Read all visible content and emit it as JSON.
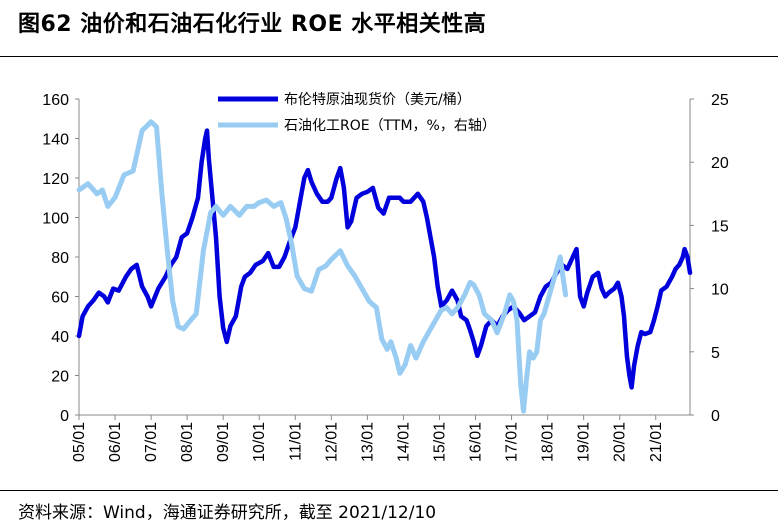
{
  "title": "图62 油价和石油石化行业 ROE 水平相关性高",
  "source": "资料来源：Wind，海通证券研究所，截至 2021/12/10",
  "chart_data": {
    "type": "line",
    "x_tick_labels": [
      "05/01",
      "06/01",
      "07/01",
      "08/01",
      "09/01",
      "10/01",
      "11/01",
      "12/01",
      "13/01",
      "14/01",
      "15/01",
      "16/01",
      "17/01",
      "18/01",
      "19/01",
      "20/01",
      "21/01"
    ],
    "x_range": [
      2005.0,
      2021.95
    ],
    "y_left": {
      "min": 0,
      "max": 160,
      "ticks": [
        0,
        20,
        40,
        60,
        80,
        100,
        120,
        140,
        160
      ]
    },
    "y_right": {
      "min": 0,
      "max": 25,
      "ticks": [
        0,
        5,
        10,
        15,
        20,
        25
      ]
    },
    "legend_position": "top-center",
    "series": [
      {
        "name": "布伦特原油现货价（美元/桶）",
        "axis": "left",
        "color": "#0000dd",
        "style": "thick",
        "points": [
          [
            2005.0,
            40
          ],
          [
            2005.1,
            50
          ],
          [
            2005.25,
            55
          ],
          [
            2005.4,
            58
          ],
          [
            2005.55,
            62
          ],
          [
            2005.7,
            60
          ],
          [
            2005.8,
            57
          ],
          [
            2005.95,
            64
          ],
          [
            2006.1,
            63
          ],
          [
            2006.3,
            70
          ],
          [
            2006.45,
            74
          ],
          [
            2006.6,
            76
          ],
          [
            2006.75,
            65
          ],
          [
            2006.9,
            60
          ],
          [
            2007.0,
            55
          ],
          [
            2007.2,
            64
          ],
          [
            2007.4,
            70
          ],
          [
            2007.55,
            76
          ],
          [
            2007.7,
            80
          ],
          [
            2007.85,
            90
          ],
          [
            2008.0,
            92
          ],
          [
            2008.15,
            100
          ],
          [
            2008.3,
            110
          ],
          [
            2008.4,
            128
          ],
          [
            2008.5,
            140
          ],
          [
            2008.55,
            144
          ],
          [
            2008.6,
            130
          ],
          [
            2008.7,
            110
          ],
          [
            2008.8,
            90
          ],
          [
            2008.9,
            60
          ],
          [
            2009.0,
            44
          ],
          [
            2009.1,
            37
          ],
          [
            2009.2,
            45
          ],
          [
            2009.35,
            50
          ],
          [
            2009.5,
            65
          ],
          [
            2009.6,
            70
          ],
          [
            2009.75,
            72
          ],
          [
            2009.9,
            76
          ],
          [
            2010.1,
            78
          ],
          [
            2010.25,
            82
          ],
          [
            2010.4,
            75
          ],
          [
            2010.55,
            75
          ],
          [
            2010.7,
            80
          ],
          [
            2010.85,
            88
          ],
          [
            2011.0,
            95
          ],
          [
            2011.1,
            105
          ],
          [
            2011.25,
            120
          ],
          [
            2011.35,
            124
          ],
          [
            2011.45,
            118
          ],
          [
            2011.6,
            112
          ],
          [
            2011.75,
            108
          ],
          [
            2011.9,
            108
          ],
          [
            2012.0,
            110
          ],
          [
            2012.15,
            120
          ],
          [
            2012.25,
            125
          ],
          [
            2012.35,
            115
          ],
          [
            2012.45,
            95
          ],
          [
            2012.55,
            98
          ],
          [
            2012.7,
            110
          ],
          [
            2012.85,
            112
          ],
          [
            2013.0,
            113
          ],
          [
            2013.15,
            115
          ],
          [
            2013.3,
            105
          ],
          [
            2013.45,
            102
          ],
          [
            2013.6,
            110
          ],
          [
            2013.75,
            110
          ],
          [
            2013.9,
            110
          ],
          [
            2014.0,
            108
          ],
          [
            2014.2,
            108
          ],
          [
            2014.4,
            112
          ],
          [
            2014.55,
            108
          ],
          [
            2014.65,
            100
          ],
          [
            2014.75,
            90
          ],
          [
            2014.85,
            80
          ],
          [
            2014.95,
            65
          ],
          [
            2015.05,
            55
          ],
          [
            2015.2,
            58
          ],
          [
            2015.35,
            63
          ],
          [
            2015.5,
            58
          ],
          [
            2015.6,
            50
          ],
          [
            2015.75,
            48
          ],
          [
            2015.85,
            43
          ],
          [
            2015.95,
            37
          ],
          [
            2016.05,
            30
          ],
          [
            2016.15,
            35
          ],
          [
            2016.3,
            45
          ],
          [
            2016.45,
            48
          ],
          [
            2016.6,
            45
          ],
          [
            2016.75,
            50
          ],
          [
            2016.9,
            53
          ],
          [
            2017.05,
            55
          ],
          [
            2017.2,
            52
          ],
          [
            2017.35,
            48
          ],
          [
            2017.5,
            50
          ],
          [
            2017.65,
            52
          ],
          [
            2017.8,
            60
          ],
          [
            2017.95,
            65
          ],
          [
            2018.1,
            67
          ],
          [
            2018.25,
            72
          ],
          [
            2018.4,
            76
          ],
          [
            2018.55,
            74
          ],
          [
            2018.7,
            80
          ],
          [
            2018.8,
            84
          ],
          [
            2018.9,
            60
          ],
          [
            2019.0,
            55
          ],
          [
            2019.1,
            62
          ],
          [
            2019.25,
            70
          ],
          [
            2019.4,
            72
          ],
          [
            2019.5,
            64
          ],
          [
            2019.6,
            60
          ],
          [
            2019.7,
            62
          ],
          [
            2019.85,
            64
          ],
          [
            2019.95,
            67
          ],
          [
            2020.05,
            60
          ],
          [
            2020.12,
            50
          ],
          [
            2020.2,
            30
          ],
          [
            2020.27,
            20
          ],
          [
            2020.33,
            14
          ],
          [
            2020.4,
            25
          ],
          [
            2020.5,
            35
          ],
          [
            2020.6,
            42
          ],
          [
            2020.7,
            41
          ],
          [
            2020.85,
            42
          ],
          [
            2020.95,
            48
          ],
          [
            2021.05,
            55
          ],
          [
            2021.15,
            63
          ],
          [
            2021.3,
            65
          ],
          [
            2021.45,
            70
          ],
          [
            2021.55,
            74
          ],
          [
            2021.65,
            76
          ],
          [
            2021.75,
            80
          ],
          [
            2021.8,
            84
          ],
          [
            2021.88,
            80
          ],
          [
            2021.95,
            72
          ]
        ]
      },
      {
        "name": "石油化工ROE（TTM，%，右轴）",
        "axis": "right",
        "color": "#99ccf2",
        "style": "thick",
        "points": [
          [
            2005.0,
            17.8
          ],
          [
            2005.25,
            18.3
          ],
          [
            2005.5,
            17.5
          ],
          [
            2005.65,
            17.8
          ],
          [
            2005.8,
            16.5
          ],
          [
            2006.0,
            17.2
          ],
          [
            2006.25,
            19.0
          ],
          [
            2006.5,
            19.3
          ],
          [
            2006.75,
            22.5
          ],
          [
            2007.0,
            23.2
          ],
          [
            2007.15,
            22.8
          ],
          [
            2007.3,
            17.5
          ],
          [
            2007.45,
            13.0
          ],
          [
            2007.6,
            9.0
          ],
          [
            2007.75,
            7.0
          ],
          [
            2007.9,
            6.8
          ],
          [
            2008.1,
            7.5
          ],
          [
            2008.25,
            8.0
          ],
          [
            2008.45,
            13.0
          ],
          [
            2008.65,
            16.0
          ],
          [
            2008.8,
            16.5
          ],
          [
            2009.0,
            15.8
          ],
          [
            2009.2,
            16.5
          ],
          [
            2009.45,
            15.8
          ],
          [
            2009.65,
            16.5
          ],
          [
            2009.85,
            16.5
          ],
          [
            2010.0,
            16.8
          ],
          [
            2010.2,
            17.0
          ],
          [
            2010.4,
            16.5
          ],
          [
            2010.6,
            16.8
          ],
          [
            2010.75,
            15.5
          ],
          [
            2010.9,
            13.5
          ],
          [
            2011.05,
            11.0
          ],
          [
            2011.25,
            10.0
          ],
          [
            2011.45,
            9.8
          ],
          [
            2011.65,
            11.5
          ],
          [
            2011.85,
            11.8
          ],
          [
            2012.0,
            12.3
          ],
          [
            2012.25,
            13.0
          ],
          [
            2012.45,
            11.8
          ],
          [
            2012.65,
            11.0
          ],
          [
            2012.85,
            10.0
          ],
          [
            2013.05,
            9.0
          ],
          [
            2013.25,
            8.5
          ],
          [
            2013.4,
            6.0
          ],
          [
            2013.55,
            5.2
          ],
          [
            2013.65,
            5.8
          ],
          [
            2013.8,
            4.5
          ],
          [
            2013.9,
            3.3
          ],
          [
            2014.05,
            4.0
          ],
          [
            2014.2,
            5.5
          ],
          [
            2014.35,
            4.5
          ],
          [
            2014.55,
            5.8
          ],
          [
            2014.75,
            6.8
          ],
          [
            2014.95,
            7.8
          ],
          [
            2015.05,
            8.3
          ],
          [
            2015.2,
            8.5
          ],
          [
            2015.35,
            8.0
          ],
          [
            2015.5,
            8.5
          ],
          [
            2015.7,
            9.5
          ],
          [
            2015.85,
            10.5
          ],
          [
            2015.95,
            10.3
          ],
          [
            2016.1,
            9.5
          ],
          [
            2016.25,
            8.0
          ],
          [
            2016.45,
            7.5
          ],
          [
            2016.6,
            6.5
          ],
          [
            2016.8,
            8.0
          ],
          [
            2016.95,
            9.5
          ],
          [
            2017.05,
            9.0
          ],
          [
            2017.15,
            7.5
          ],
          [
            2017.25,
            2.5
          ],
          [
            2017.33,
            0.3
          ],
          [
            2017.42,
            3.0
          ],
          [
            2017.5,
            5.0
          ],
          [
            2017.6,
            4.5
          ],
          [
            2017.7,
            5.0
          ],
          [
            2017.8,
            7.5
          ],
          [
            2017.9,
            8.0
          ],
          [
            2018.0,
            9.0
          ],
          [
            2018.1,
            10.0
          ],
          [
            2018.2,
            11.0
          ],
          [
            2018.3,
            12.0
          ],
          [
            2018.35,
            12.5
          ],
          [
            2018.42,
            11.0
          ],
          [
            2018.5,
            9.5
          ]
        ]
      }
    ]
  }
}
